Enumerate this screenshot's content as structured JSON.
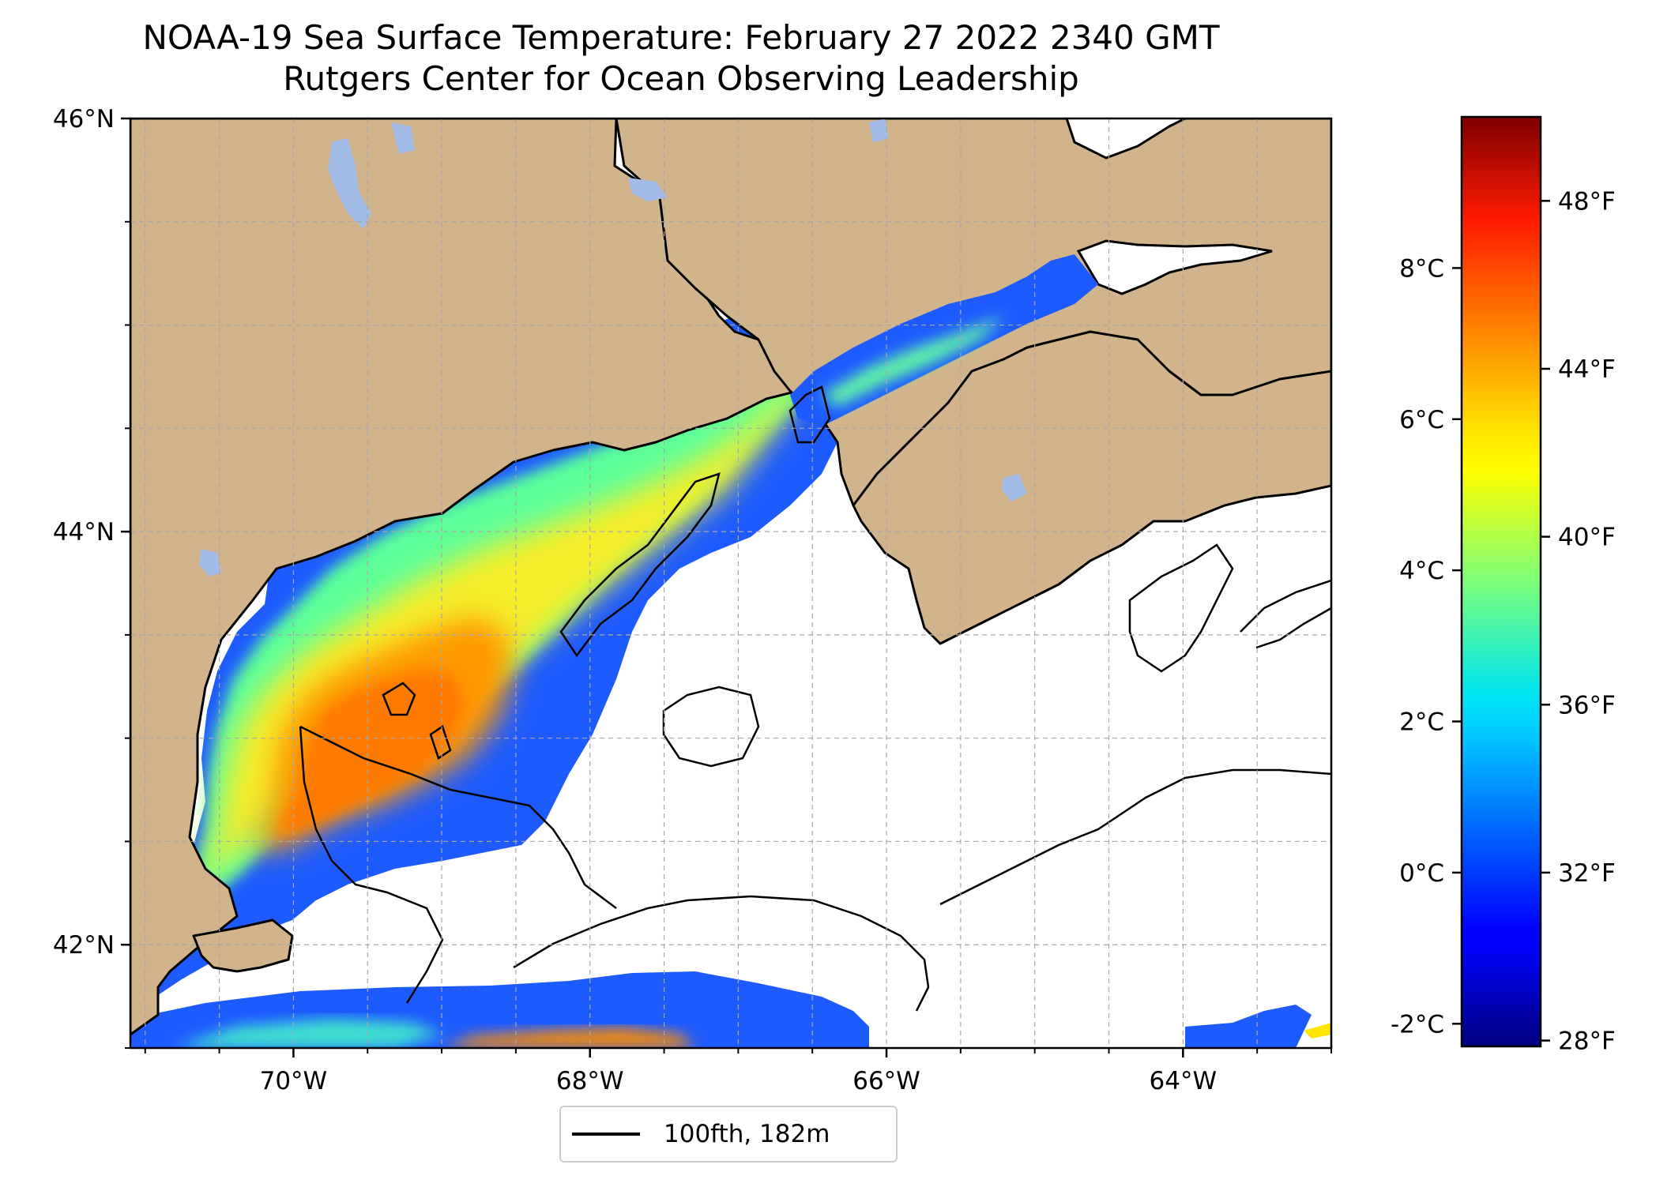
{
  "title": {
    "line1": "NOAA-19 Sea Surface Temperature: February 27 2022 2340 GMT",
    "line2": "Rutgers Center for Ocean Observing Leadership"
  },
  "map": {
    "lon_range": [
      -71.1,
      -63.0
    ],
    "lat_range": [
      41.5,
      46.0
    ],
    "lat_ticks": [
      {
        "value": 42,
        "label": "42°N"
      },
      {
        "value": 44,
        "label": "44°N"
      },
      {
        "value": 46,
        "label": "46°N"
      }
    ],
    "lon_ticks": [
      {
        "value": -70,
        "label": "70°W"
      },
      {
        "value": -68,
        "label": "68°W"
      },
      {
        "value": -66,
        "label": "66°W"
      },
      {
        "value": -64,
        "label": "64°W"
      }
    ],
    "gridlines": true,
    "colors": {
      "land": "#d2b48c",
      "lakes": "#a4bde8",
      "no_data": "#ffffff",
      "coast": "#000000"
    }
  },
  "colorbar": {
    "colormap": "jet",
    "range_c": [
      -2.3,
      10.0
    ],
    "celsius_ticks": [
      {
        "value": -2,
        "label": "-2°C"
      },
      {
        "value": 0,
        "label": "0°C"
      },
      {
        "value": 2,
        "label": "2°C"
      },
      {
        "value": 4,
        "label": "4°C"
      },
      {
        "value": 6,
        "label": "6°C"
      },
      {
        "value": 8,
        "label": "8°C"
      }
    ],
    "fahrenheit_ticks": [
      {
        "value": 28,
        "label": "28°F"
      },
      {
        "value": 32,
        "label": "32°F"
      },
      {
        "value": 36,
        "label": "36°F"
      },
      {
        "value": 40,
        "label": "40°F"
      },
      {
        "value": 44,
        "label": "44°F"
      },
      {
        "value": 48,
        "label": "48°F"
      }
    ]
  },
  "legend": {
    "label": "100fth, 182m"
  }
}
